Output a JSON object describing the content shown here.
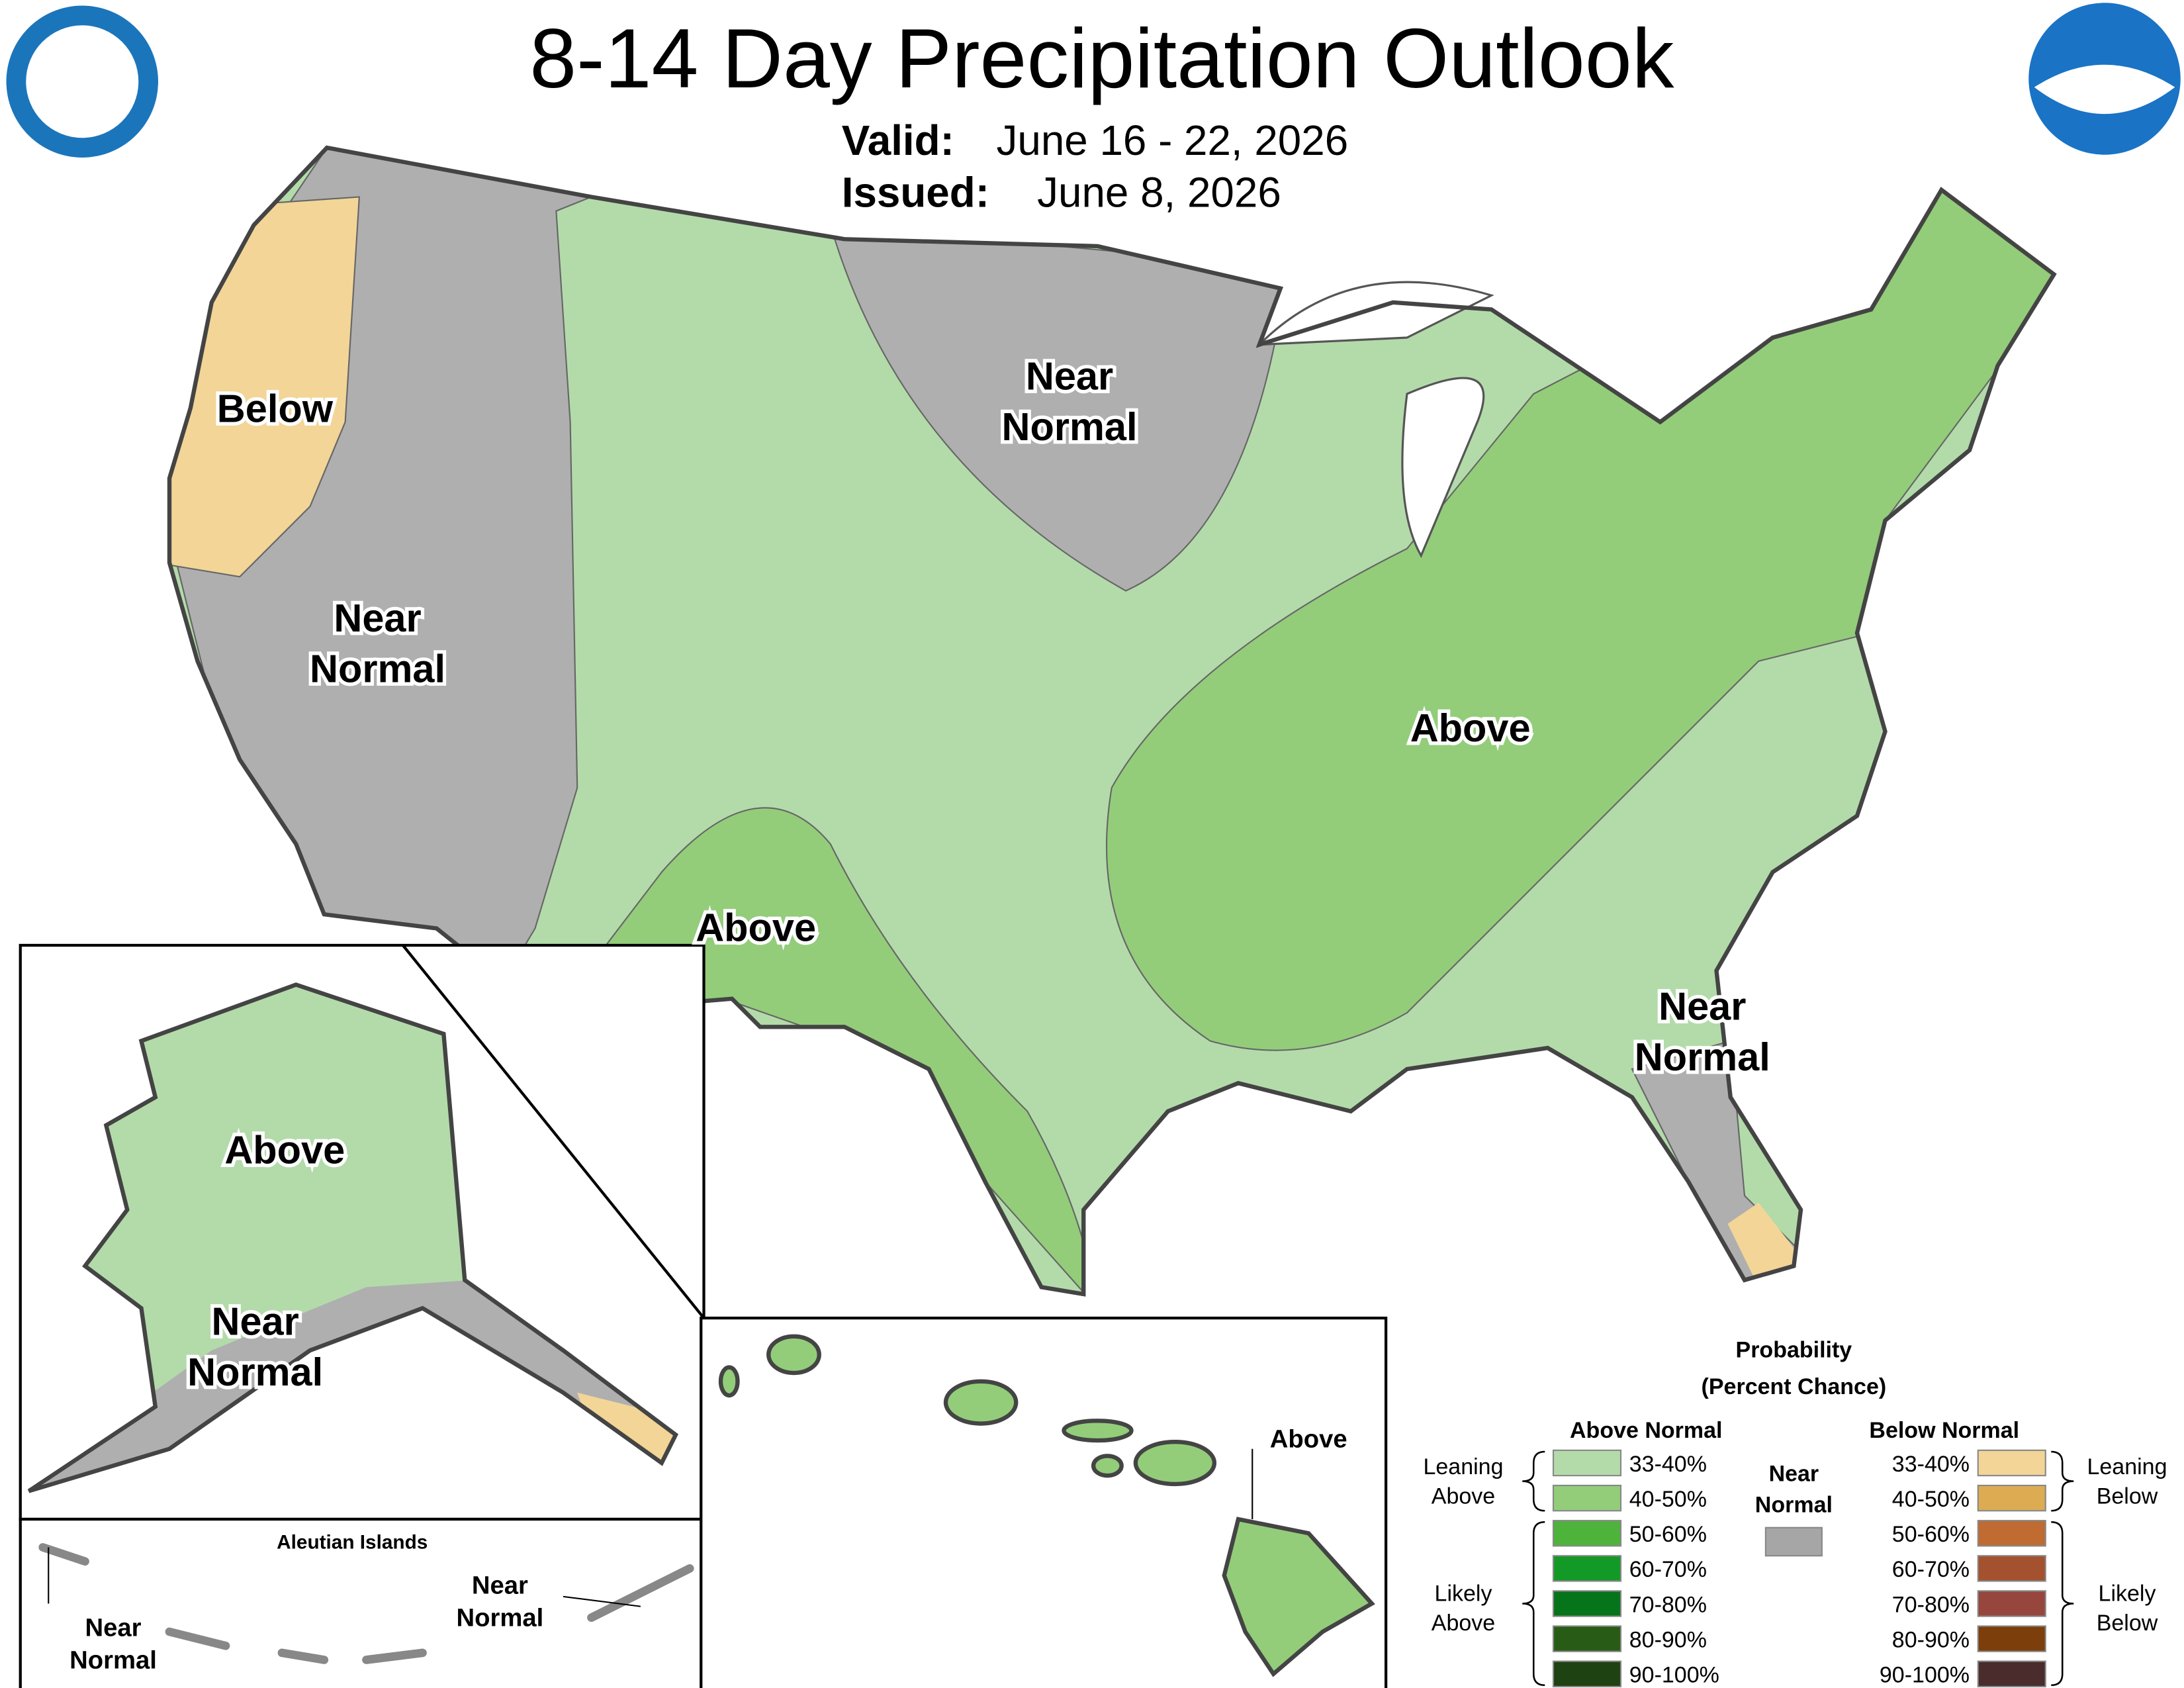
{
  "header": {
    "title": "8-14 Day Precipitation Outlook",
    "valid_label": "Valid:",
    "valid": "June 16 - 22, 2026",
    "issued_label": "Issued:",
    "issued": "June 8, 2026"
  },
  "map_labels": [
    {
      "lines": [
        "Below"
      ]
    },
    {
      "lines": [
        "Near",
        "Normal"
      ]
    },
    {
      "lines": [
        "Near",
        "Normal"
      ]
    },
    {
      "lines": [
        "Above"
      ]
    },
    {
      "lines": [
        "Above"
      ]
    },
    {
      "lines": [
        "Near",
        "Normal"
      ]
    },
    {
      "lines": [
        "Above"
      ]
    },
    {
      "lines": [
        "Near",
        "Normal"
      ]
    },
    {
      "lines": [
        "Near",
        "Normal"
      ]
    },
    {
      "lines": [
        "Near",
        "Normal"
      ]
    },
    {
      "lines": [
        "Above"
      ]
    }
  ],
  "aleutian_title": "Aleutian Islands",
  "legend": {
    "title": [
      "Probability",
      "(Percent Chance)"
    ],
    "above_header": "Above Normal",
    "below_header": "Below Normal",
    "near_header": [
      "Near",
      "Normal"
    ],
    "near_color": "#a6a6a6",
    "leaning_above": [
      "Leaning",
      "Above"
    ],
    "likely_above": [
      "Likely",
      "Above"
    ],
    "leaning_below": [
      "Leaning",
      "Below"
    ],
    "likely_below": [
      "Likely",
      "Below"
    ],
    "above_bins": [
      {
        "label": "33-40%",
        "color": "#b3dbaa"
      },
      {
        "label": "40-50%",
        "color": "#93cd7a"
      },
      {
        "label": "50-60%",
        "color": "#4eb33b"
      },
      {
        "label": "60-70%",
        "color": "#139a26"
      },
      {
        "label": "70-80%",
        "color": "#06741b"
      },
      {
        "label": "80-90%",
        "color": "#285c16"
      },
      {
        "label": "90-100%",
        "color": "#1e4211"
      }
    ],
    "below_bins": [
      {
        "label": "33-40%",
        "color": "#f2d597"
      },
      {
        "label": "40-50%",
        "color": "#dcab52"
      },
      {
        "label": "50-60%",
        "color": "#c06b32"
      },
      {
        "label": "60-70%",
        "color": "#a4512f"
      },
      {
        "label": "70-80%",
        "color": "#97463d"
      },
      {
        "label": "80-90%",
        "color": "#7c3e0b"
      },
      {
        "label": "90-100%",
        "color": "#4a2c2c"
      }
    ]
  }
}
